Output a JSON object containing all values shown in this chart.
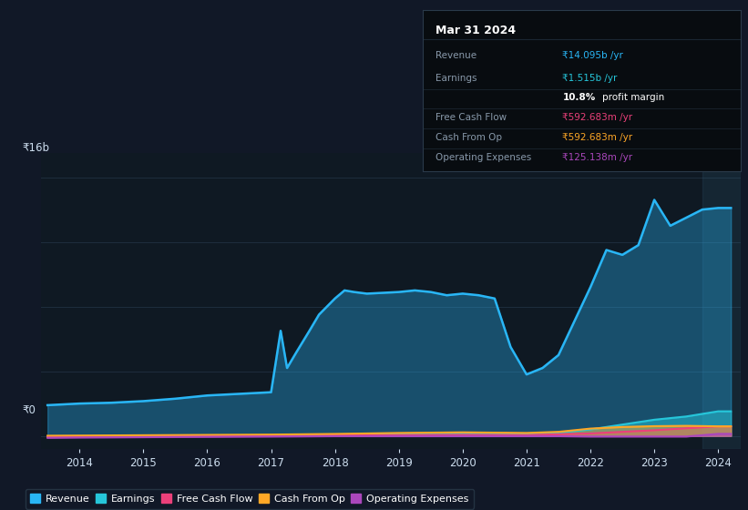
{
  "background_color": "#111827",
  "plot_bg_color": "#0f1923",
  "info_box_bg": "#0a0a0a",
  "y_label_top": "₹16b",
  "y_label_zero": "₹0",
  "x_ticks": [
    2014,
    2015,
    2016,
    2017,
    2018,
    2019,
    2020,
    2021,
    2022,
    2023,
    2024
  ],
  "colors": {
    "revenue": "#29b6f6",
    "earnings": "#26c6da",
    "free_cash_flow": "#ec407a",
    "cash_from_op": "#ffa726",
    "operating_expenses": "#ab47bc"
  },
  "legend": [
    {
      "label": "Revenue",
      "color": "#29b6f6"
    },
    {
      "label": "Earnings",
      "color": "#26c6da"
    },
    {
      "label": "Free Cash Flow",
      "color": "#ec407a"
    },
    {
      "label": "Cash From Op",
      "color": "#ffa726"
    },
    {
      "label": "Operating Expenses",
      "color": "#ab47bc"
    }
  ],
  "revenue": {
    "x": [
      2013.5,
      2014.0,
      2014.5,
      2015.0,
      2015.5,
      2016.0,
      2016.5,
      2017.0,
      2017.15,
      2017.25,
      2017.4,
      2017.6,
      2017.75,
      2018.0,
      2018.15,
      2018.3,
      2018.5,
      2018.75,
      2019.0,
      2019.25,
      2019.5,
      2019.75,
      2020.0,
      2020.25,
      2020.5,
      2020.75,
      2021.0,
      2021.25,
      2021.5,
      2022.0,
      2022.25,
      2022.5,
      2022.75,
      2023.0,
      2023.25,
      2023.5,
      2023.75,
      2024.0,
      2024.2
    ],
    "y": [
      1.9,
      2.0,
      2.05,
      2.15,
      2.3,
      2.5,
      2.6,
      2.7,
      6.5,
      4.2,
      5.2,
      6.5,
      7.5,
      8.5,
      9.0,
      8.9,
      8.8,
      8.85,
      8.9,
      9.0,
      8.9,
      8.7,
      8.8,
      8.7,
      8.5,
      5.5,
      3.8,
      4.2,
      5.0,
      9.2,
      11.5,
      11.2,
      11.8,
      14.6,
      13.0,
      13.5,
      14.0,
      14.1,
      14.1
    ]
  },
  "earnings": {
    "x": [
      2013.5,
      2014.0,
      2015.0,
      2016.0,
      2017.0,
      2018.0,
      2019.0,
      2020.0,
      2021.0,
      2021.5,
      2022.0,
      2022.5,
      2023.0,
      2023.5,
      2024.0,
      2024.2
    ],
    "y": [
      -0.05,
      -0.03,
      0.01,
      0.02,
      0.03,
      0.08,
      0.1,
      0.15,
      0.12,
      0.2,
      0.4,
      0.7,
      1.0,
      1.2,
      1.52,
      1.52
    ]
  },
  "free_cash_flow": {
    "x": [
      2013.5,
      2014.0,
      2015.0,
      2016.0,
      2017.0,
      2018.0,
      2019.0,
      2020.0,
      2021.0,
      2022.0,
      2023.0,
      2024.0,
      2024.2
    ],
    "y": [
      -0.08,
      -0.05,
      -0.02,
      0.0,
      0.01,
      0.03,
      0.05,
      0.06,
      0.05,
      0.15,
      0.35,
      0.59,
      0.59
    ]
  },
  "cash_from_op": {
    "x": [
      2013.5,
      2014.0,
      2015.0,
      2016.0,
      2017.0,
      2018.0,
      2019.0,
      2020.0,
      2021.0,
      2021.5,
      2022.0,
      2022.5,
      2023.0,
      2023.5,
      2024.0,
      2024.2
    ],
    "y": [
      0.01,
      0.02,
      0.04,
      0.06,
      0.08,
      0.12,
      0.18,
      0.22,
      0.18,
      0.25,
      0.45,
      0.55,
      0.6,
      0.62,
      0.59,
      0.59
    ]
  },
  "operating_expenses": {
    "x": [
      2013.5,
      2014.0,
      2015.0,
      2016.0,
      2017.0,
      2018.0,
      2018.5,
      2019.0,
      2019.5,
      2020.0,
      2020.5,
      2021.0,
      2021.5,
      2022.0,
      2022.5,
      2023.0,
      2023.5,
      2024.0,
      2024.2
    ],
    "y": [
      -0.12,
      -0.1,
      -0.08,
      -0.06,
      -0.04,
      -0.02,
      -0.02,
      -0.02,
      -0.02,
      -0.02,
      -0.02,
      -0.02,
      -0.02,
      -0.04,
      -0.04,
      -0.04,
      -0.04,
      0.125,
      0.125
    ]
  },
  "ylim": [
    -0.8,
    17.5
  ],
  "xlim": [
    2013.4,
    2024.35
  ],
  "info_box": {
    "title": "Mar 31 2024",
    "title_color": "#ffffff",
    "rows": [
      {
        "label": "Revenue",
        "label_color": "#8899aa",
        "value": "₹14.095b /yr",
        "value_color": "#29b6f6"
      },
      {
        "label": "Earnings",
        "label_color": "#8899aa",
        "value": "₹1.515b /yr",
        "value_color": "#26c6da"
      },
      {
        "label": "",
        "label_color": "",
        "value": "10.8% profit margin",
        "value_color": "#ffffff"
      },
      {
        "label": "Free Cash Flow",
        "label_color": "#8899aa",
        "value": "₹592.683m /yr",
        "value_color": "#ec407a"
      },
      {
        "label": "Cash From Op",
        "label_color": "#8899aa",
        "value": "₹592.683m /yr",
        "value_color": "#ffa726"
      },
      {
        "label": "Operating Expenses",
        "label_color": "#8899aa",
        "value": "₹125.138m /yr",
        "value_color": "#ab47bc"
      }
    ]
  }
}
